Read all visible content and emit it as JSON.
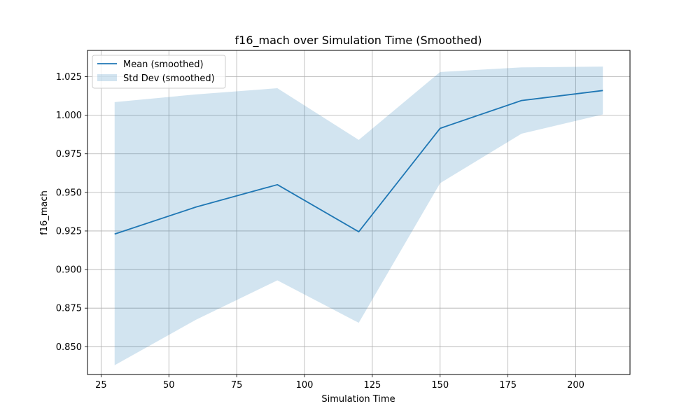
{
  "chart_data": {
    "type": "line",
    "title": "f16_mach over Simulation Time (Smoothed)",
    "xlabel": "Simulation Time",
    "ylabel": "f16_mach",
    "xlim": [
      20,
      220
    ],
    "ylim": [
      0.832,
      1.042
    ],
    "xticks": [
      25,
      50,
      75,
      100,
      125,
      150,
      175,
      200
    ],
    "xtick_labels": [
      "25",
      "50",
      "75",
      "100",
      "125",
      "150",
      "175",
      "200"
    ],
    "yticks": [
      0.85,
      0.875,
      0.9,
      0.925,
      0.95,
      0.975,
      1.0,
      1.025
    ],
    "ytick_labels": [
      "0.850",
      "0.875",
      "0.900",
      "0.925",
      "0.950",
      "0.975",
      "1.000",
      "1.025"
    ],
    "grid": true,
    "legend_position": "top-left",
    "x": [
      30,
      60,
      90,
      120,
      150,
      180,
      210
    ],
    "series": [
      {
        "name": "Mean (smoothed)",
        "kind": "line",
        "color": "#1f77b4",
        "values": [
          0.923,
          0.9405,
          0.955,
          0.9245,
          0.9915,
          1.0095,
          1.016
        ]
      },
      {
        "name": "Std Dev (smoothed)",
        "kind": "band",
        "color": "#1f77b4",
        "opacity": 0.2,
        "lower": [
          0.838,
          0.8675,
          0.893,
          0.8655,
          0.956,
          0.988,
          1.0005
        ],
        "upper": [
          1.0085,
          1.0135,
          1.0175,
          0.984,
          1.028,
          1.031,
          1.0315
        ]
      }
    ]
  }
}
